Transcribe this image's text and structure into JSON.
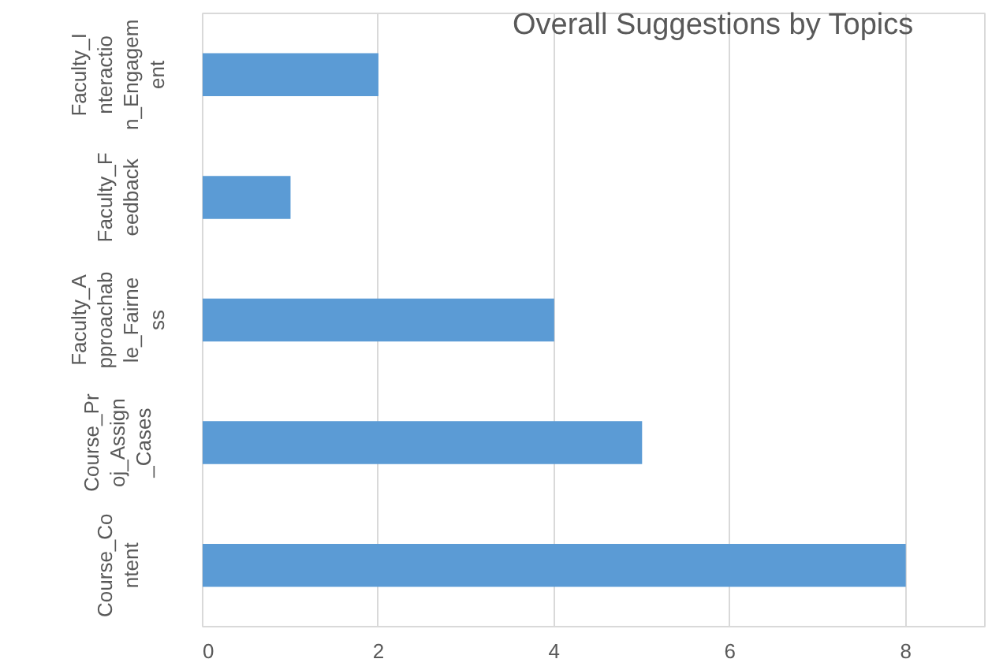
{
  "chart_data": {
    "type": "bar",
    "orientation": "horizontal",
    "title": "Overall Suggestions by Topics",
    "categories": [
      "Faculty_Interaction_Engagement",
      "Faculty_Feedback",
      "Faculty_Approachable_Fairness",
      "Course_Proj_Assign_Cases",
      "Course_Content"
    ],
    "values": [
      2,
      1,
      4,
      5,
      8
    ],
    "color": "#5b9bd5",
    "xlim": [
      0,
      8.9
    ],
    "xticks": [
      0,
      2,
      4,
      6,
      8
    ],
    "grid": "x"
  }
}
